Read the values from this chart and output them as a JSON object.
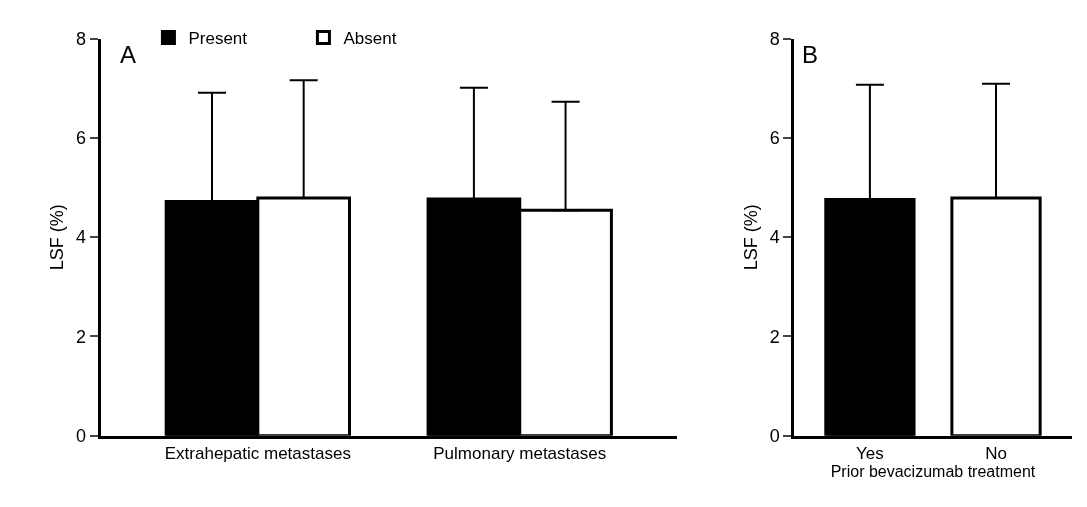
{
  "chart_data": [
    {
      "type": "bar",
      "title": "A",
      "ylabel": "LSF (%)",
      "categories": [
        "Extrahepatic metastases",
        "Pulmonary metastases"
      ],
      "series": [
        {
          "name": "Present",
          "color": "#000000",
          "values": [
            4.72,
            4.77
          ],
          "errors": [
            [
              4.72,
              6.91
            ],
            [
              4.77,
              7.01
            ]
          ]
        },
        {
          "name": "Absent",
          "color": "#ffffff",
          "values": [
            4.79,
            4.54
          ],
          "errors": [
            [
              4.79,
              7.16
            ],
            [
              4.54,
              6.73
            ]
          ]
        }
      ],
      "ylim": [
        0,
        8
      ],
      "yticks": [
        0,
        2,
        4,
        6,
        8
      ],
      "legend": "top"
    },
    {
      "type": "bar",
      "title": "B",
      "ylabel": "LSF (%)",
      "xlabel": "Prior bevacizumab treatment",
      "categories": [
        "Yes",
        "No"
      ],
      "values": [
        4.76,
        4.79
      ],
      "colors": [
        "#000000",
        "#ffffff"
      ],
      "errors": [
        [
          4.76,
          7.07
        ],
        [
          4.79,
          7.09
        ]
      ],
      "ylim": [
        0,
        8
      ],
      "yticks": [
        0,
        2,
        4,
        6,
        8
      ],
      "legend": false
    }
  ]
}
